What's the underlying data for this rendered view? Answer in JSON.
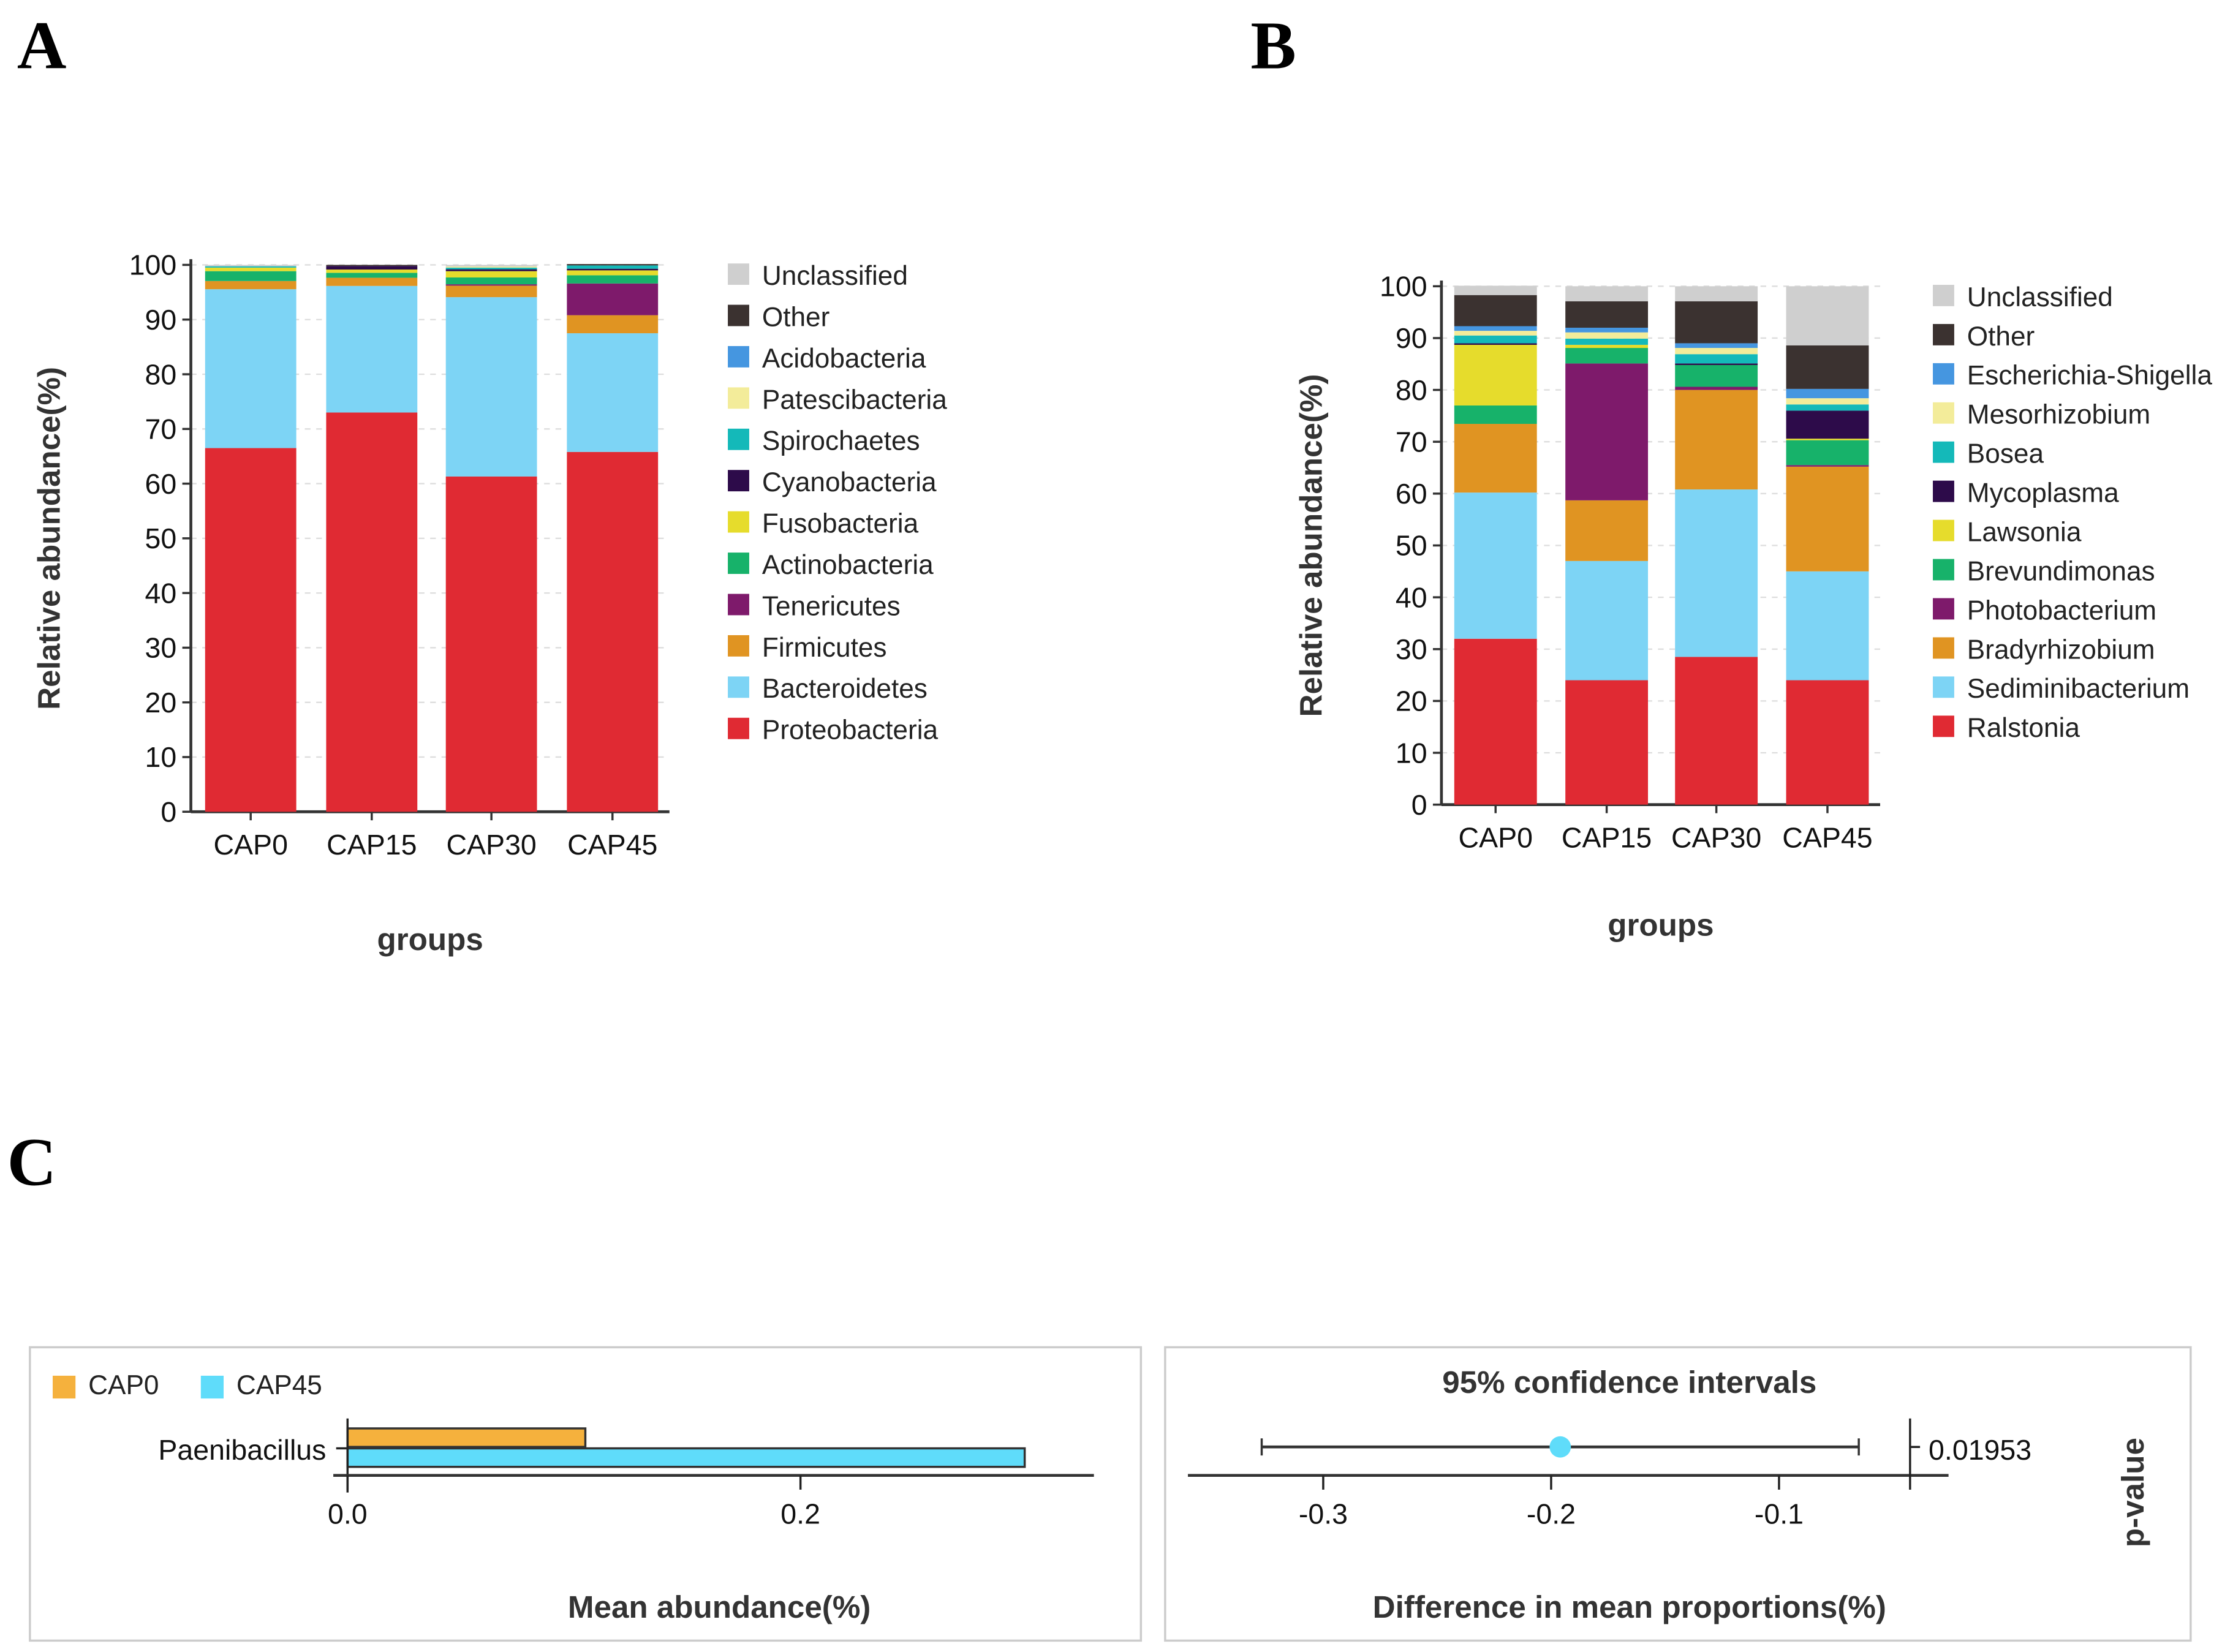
{
  "panel_labels": {
    "a": "A",
    "b": "B",
    "c": "C"
  },
  "chart_data": [
    {
      "type": "bar",
      "stacked": true,
      "panel": "A",
      "title": "",
      "xlabel": "groups",
      "ylabel": "Relative abundance(%)",
      "ylim": [
        0,
        100
      ],
      "yticks": [
        0,
        10,
        20,
        30,
        40,
        50,
        60,
        70,
        80,
        90,
        100
      ],
      "categories": [
        "CAP0",
        "CAP15",
        "CAP30",
        "CAP45"
      ],
      "legend_position": "right",
      "series": [
        {
          "name": "Proteobacteria",
          "color": "#e02a33",
          "values": [
            66.5,
            73.0,
            61.3,
            65.8
          ]
        },
        {
          "name": "Bacteroidetes",
          "color": "#7dd4f5",
          "values": [
            29.05,
            23.15,
            32.8,
            21.7
          ]
        },
        {
          "name": "Firmicutes",
          "color": "#e09422",
          "values": [
            1.5,
            1.5,
            2.1,
            3.3
          ]
        },
        {
          "name": "Tenericutes",
          "color": "#7e1a6b",
          "values": [
            0,
            0,
            0.25,
            5.8
          ]
        },
        {
          "name": "Actinobacteria",
          "color": "#17b26a",
          "values": [
            1.8,
            0.9,
            1.25,
            1.5
          ]
        },
        {
          "name": "Fusobacteria",
          "color": "#e6dc2c",
          "values": [
            0.65,
            0.6,
            1.15,
            0.9
          ]
        },
        {
          "name": "Cyanobacteria",
          "color": "#2d0b4a",
          "values": [
            0,
            0.65,
            0.35,
            0.3
          ]
        },
        {
          "name": "Spirochaetes",
          "color": "#14b9b9",
          "values": [
            0.25,
            0,
            0.3,
            0.6
          ]
        },
        {
          "name": "Patescibacteria",
          "color": "#f3ec9a",
          "values": [
            0,
            0,
            0.2,
            0
          ]
        },
        {
          "name": "Acidobacteria",
          "color": "#4596e0",
          "values": [
            0,
            0,
            0,
            0
          ]
        },
        {
          "name": "Other",
          "color": "#3b3230",
          "values": [
            0,
            0.2,
            0,
            0.25
          ]
        },
        {
          "name": "Unclassified",
          "color": "#cfcfcf",
          "values": [
            0.25,
            0,
            0.3,
            0
          ]
        }
      ]
    },
    {
      "type": "bar",
      "stacked": true,
      "panel": "B",
      "title": "",
      "xlabel": "groups",
      "ylabel": "Relative abundance(%)",
      "ylim": [
        0,
        100
      ],
      "yticks": [
        0,
        10,
        20,
        30,
        40,
        50,
        60,
        70,
        80,
        90,
        100
      ],
      "categories": [
        "CAP0",
        "CAP15",
        "CAP30",
        "CAP45"
      ],
      "legend_position": "right",
      "series": [
        {
          "name": "Ralstonia",
          "color": "#e02a33",
          "values": [
            32.0,
            24.0,
            28.5,
            24.0
          ]
        },
        {
          "name": "Sediminibacterium",
          "color": "#7dd4f5",
          "values": [
            28.2,
            23.0,
            32.3,
            21.0
          ]
        },
        {
          "name": "Bradyrhizobium",
          "color": "#e09422",
          "values": [
            13.25,
            11.7,
            19.2,
            20.2
          ]
        },
        {
          "name": "Photobacterium",
          "color": "#7e1a6b",
          "values": [
            0,
            26.4,
            0.6,
            0.3
          ]
        },
        {
          "name": "Brevundimonas",
          "color": "#17b26a",
          "values": [
            3.55,
            3.0,
            4.2,
            4.8
          ]
        },
        {
          "name": "Lawsonia",
          "color": "#e6dc2c",
          "values": [
            11.7,
            0.6,
            0,
            0.3
          ]
        },
        {
          "name": "Mycoplasma",
          "color": "#2d0b4a",
          "values": [
            0.3,
            0,
            0.3,
            5.4
          ]
        },
        {
          "name": "Bosea",
          "color": "#14b9b9",
          "values": [
            1.5,
            1.2,
            1.8,
            1.2
          ]
        },
        {
          "name": "Mesorhizobium",
          "color": "#f3ec9a",
          "values": [
            0.9,
            1.2,
            1.2,
            1.2
          ]
        },
        {
          "name": "Escherichia-Shigella",
          "color": "#4596e0",
          "values": [
            0.9,
            0.9,
            0.9,
            1.8
          ]
        },
        {
          "name": "Other",
          "color": "#3b3230",
          "values": [
            6.0,
            5.1,
            8.1,
            8.4
          ]
        },
        {
          "name": "Unclassified",
          "color": "#cfcfcf",
          "values": [
            1.8,
            2.9,
            2.9,
            11.4
          ]
        }
      ]
    },
    {
      "type": "bar",
      "orientation": "horizontal",
      "panel": "C-left",
      "xlabel": "Mean abundance(%)",
      "xticks": [
        0.0,
        0.2
      ],
      "xtick_labels": [
        "0.0",
        "0.2"
      ],
      "xlim": [
        0,
        0.33
      ],
      "categories": [
        "Paenibacillus"
      ],
      "legend_position": "top-left",
      "series": [
        {
          "name": "CAP0",
          "color": "#f5b13d",
          "values": [
            0.105
          ]
        },
        {
          "name": "CAP45",
          "color": "#5fdcfa",
          "values": [
            0.299
          ]
        }
      ]
    },
    {
      "type": "scatter",
      "panel": "C-right",
      "title": "95% confidence intervals",
      "xlabel": "Difference in mean proportions(%)",
      "ylabel_right": "p-value",
      "xticks": [
        -0.3,
        -0.2,
        -0.1
      ],
      "xtick_labels": [
        "-0.3",
        "-0.2",
        "-0.1"
      ],
      "xlim": [
        -0.36,
        0.0
      ],
      "points": [
        {
          "category": "Paenibacillus",
          "estimate": -0.196,
          "ci_low": -0.327,
          "ci_high": -0.065,
          "p_value": "0.01953",
          "color": "#5fdcfa"
        }
      ]
    }
  ]
}
